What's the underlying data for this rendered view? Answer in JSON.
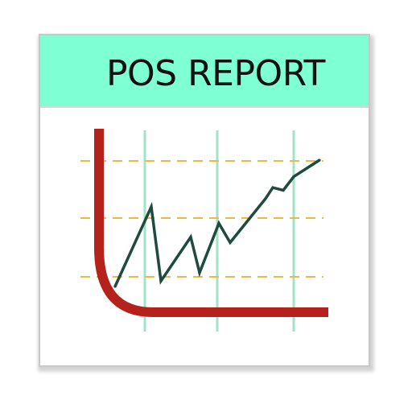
{
  "icon": {
    "title": "POS REPORT"
  },
  "colors": {
    "header_bg": "#7fffd4",
    "axis": "#b5211b",
    "trend_line": "#1e4a3f",
    "vertical_grid": "#9fe3c8",
    "dashed_grid": "#f0b840"
  },
  "chart_data": {
    "type": "line",
    "title": "",
    "xlabel": "",
    "ylabel": "",
    "grid": true,
    "x": [
      0,
      1,
      2,
      3,
      4,
      5,
      6,
      7,
      8,
      9,
      10,
      11
    ],
    "series": [
      {
        "values": [
          1.0,
          3.9,
          1.2,
          2.8,
          1.5,
          3.3,
          2.6,
          4.2,
          4.6,
          4.5,
          5.0,
          5.6
        ]
      }
    ],
    "xlim": [
      0,
      11
    ],
    "ylim": [
      0,
      6
    ]
  }
}
